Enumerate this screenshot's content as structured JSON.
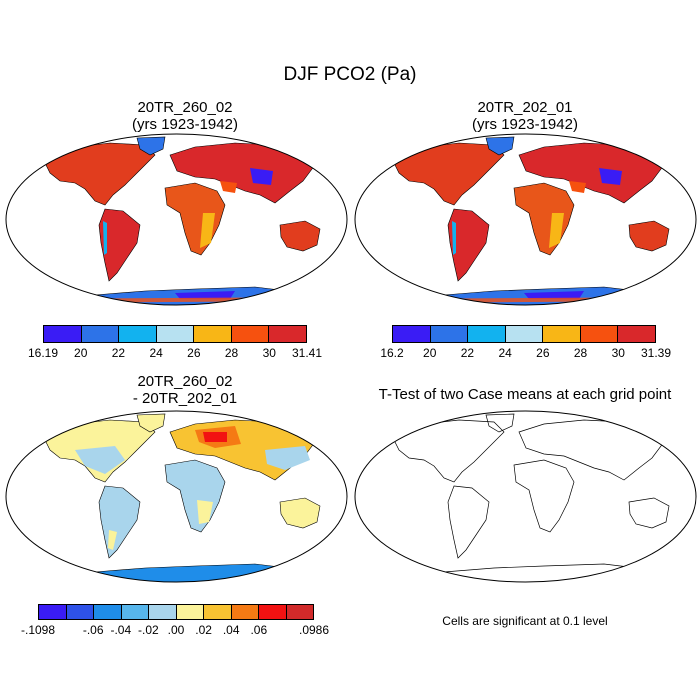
{
  "figure": {
    "title": "DJF PCO2 (Pa)",
    "note": "Cells are significant at 0.1 level"
  },
  "panels": [
    {
      "id": "case1",
      "title_line1": "20TR_260_02",
      "title_line2": "(yrs 1923-1942)",
      "colorbar": {
        "colors": [
          "#3a1cf5",
          "#2d73e8",
          "#12b2ef",
          "#b7e1f1",
          "#f8b616",
          "#f6510f",
          "#d9282b"
        ],
        "ticks": [
          "16.19",
          "20",
          "22",
          "24",
          "26",
          "28",
          "30",
          "31.41"
        ]
      }
    },
    {
      "id": "case2",
      "title_line1": "20TR_202_01",
      "title_line2": "(yrs 1923-1942)",
      "colorbar": {
        "colors": [
          "#3a1cf5",
          "#2d73e8",
          "#12b2ef",
          "#b7e1f1",
          "#f8b616",
          "#f6510f",
          "#d9282b"
        ],
        "ticks": [
          "16.2",
          "20",
          "22",
          "24",
          "26",
          "28",
          "30",
          "31.39"
        ]
      }
    },
    {
      "id": "diff",
      "title_line1": "20TR_260_02",
      "title_line2": "- 20TR_202_01",
      "colorbar": {
        "colors": [
          "#3a1cf5",
          "#2e52e8",
          "#1f8de9",
          "#57b6ec",
          "#a9d5ec",
          "#fbf39b",
          "#f8c332",
          "#f57a14",
          "#f21212",
          "#d12a2a"
        ],
        "ticks": [
          "-.1098",
          "-.06",
          "-.04",
          "-.02",
          ".00",
          ".02",
          ".04",
          ".06",
          ".0986"
        ]
      }
    },
    {
      "id": "ttest",
      "title_line1": "T-Test of two Case means at each grid point"
    }
  ]
}
